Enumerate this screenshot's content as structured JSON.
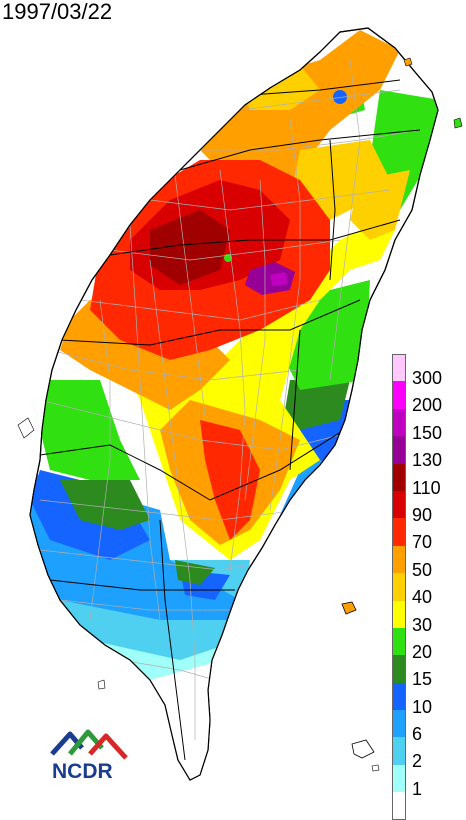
{
  "map": {
    "date": "1997/03/22",
    "region": "Taiwan"
  },
  "legend": {
    "items": [
      {
        "label": "300",
        "color": "#ffc8ff"
      },
      {
        "label": "200",
        "color": "#ff00ff"
      },
      {
        "label": "150",
        "color": "#c000c0"
      },
      {
        "label": "130",
        "color": "#960096"
      },
      {
        "label": "110",
        "color": "#a00000"
      },
      {
        "label": "90",
        "color": "#d80000"
      },
      {
        "label": "70",
        "color": "#ff2800"
      },
      {
        "label": "50",
        "color": "#ffa000"
      },
      {
        "label": "40",
        "color": "#ffd000"
      },
      {
        "label": "30",
        "color": "#ffff00"
      },
      {
        "label": "20",
        "color": "#30e010"
      },
      {
        "label": "15",
        "color": "#2d8a1e"
      },
      {
        "label": "10",
        "color": "#1664ff"
      },
      {
        "label": "6",
        "color": "#1ea0ff"
      },
      {
        "label": "2",
        "color": "#50d0f0"
      },
      {
        "label": "1",
        "color": "#a0fff8"
      },
      {
        "label": "",
        "color": "#ffffff"
      }
    ]
  },
  "logo": {
    "text": "NCDR",
    "colors": {
      "blue": "#1a3d8f",
      "green": "#2e9a3c",
      "red": "#d62828"
    }
  }
}
